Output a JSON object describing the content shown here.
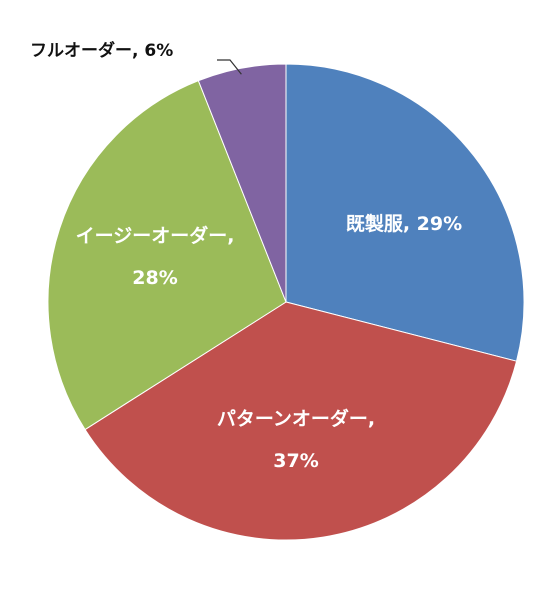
{
  "chart_data": {
    "type": "pie",
    "title": "",
    "start_angle_deg": 0,
    "direction": "clockwise",
    "slices": [
      {
        "name": "既製服",
        "value": 29,
        "color": "#4f81bd",
        "label_lines": [
          "既製服, 29%"
        ],
        "label_color": "#ffffff"
      },
      {
        "name": "パターンオーダー",
        "value": 37,
        "color": "#c0504d",
        "label_lines": [
          "パターンオーダー,",
          "37%"
        ],
        "label_color": "#ffffff"
      },
      {
        "name": "イージーオーダー",
        "value": 28,
        "color": "#9bbb59",
        "label_lines": [
          "イージーオーダー,",
          "28%"
        ],
        "label_color": "#ffffff"
      },
      {
        "name": "フルオーダー",
        "value": 6,
        "color": "#8064a2",
        "label_lines": [
          "フルオーダー, 6%"
        ],
        "label_color": "#111111"
      }
    ]
  }
}
